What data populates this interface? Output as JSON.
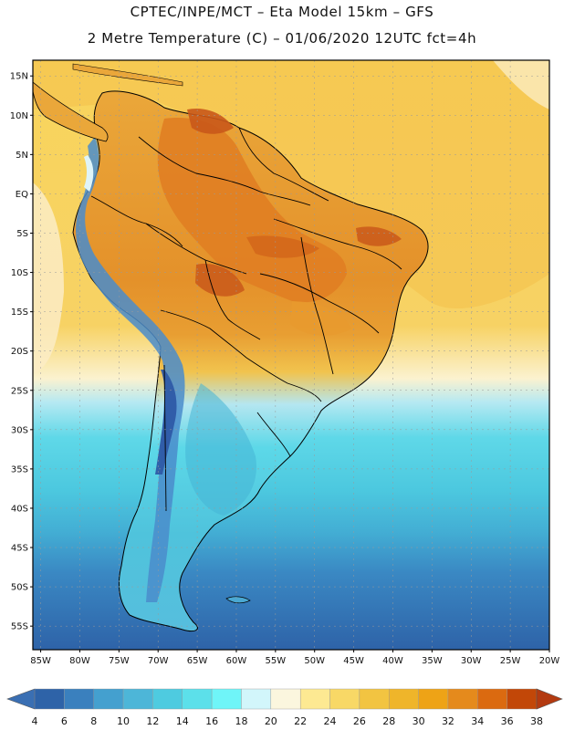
{
  "header": {
    "line1": "CPTEC/INPE/MCT –  Eta Model 15km – GFS",
    "line2": "2 Metre Temperature (C) – 01/06/2020 12UTC fct=4h"
  },
  "map": {
    "region": "South America",
    "lat_range_deg": [
      -58,
      17
    ],
    "lon_range_deg": [
      -86,
      -20
    ],
    "lat_ticks": [
      {
        "value": 15,
        "label": "15N"
      },
      {
        "value": 10,
        "label": "10N"
      },
      {
        "value": 5,
        "label": "5N"
      },
      {
        "value": 0,
        "label": "EQ"
      },
      {
        "value": -5,
        "label": "5S"
      },
      {
        "value": -10,
        "label": "10S"
      },
      {
        "value": -15,
        "label": "15S"
      },
      {
        "value": -20,
        "label": "20S"
      },
      {
        "value": -25,
        "label": "25S"
      },
      {
        "value": -30,
        "label": "30S"
      },
      {
        "value": -35,
        "label": "35S"
      },
      {
        "value": -40,
        "label": "40S"
      },
      {
        "value": -45,
        "label": "45S"
      },
      {
        "value": -50,
        "label": "50S"
      },
      {
        "value": -55,
        "label": "55S"
      }
    ],
    "lon_ticks": [
      {
        "value": -85,
        "label": "85W"
      },
      {
        "value": -80,
        "label": "80W"
      },
      {
        "value": -75,
        "label": "75W"
      },
      {
        "value": -70,
        "label": "70W"
      },
      {
        "value": -65,
        "label": "65W"
      },
      {
        "value": -60,
        "label": "60W"
      },
      {
        "value": -55,
        "label": "55W"
      },
      {
        "value": -50,
        "label": "50W"
      },
      {
        "value": -45,
        "label": "45W"
      },
      {
        "value": -40,
        "label": "40W"
      },
      {
        "value": -35,
        "label": "35W"
      },
      {
        "value": -30,
        "label": "30W"
      },
      {
        "value": -25,
        "label": "25W"
      },
      {
        "value": -20,
        "label": "20W"
      }
    ],
    "temperature_bands": [
      {
        "lat_from": 17,
        "lat_to": 0,
        "temp": 28
      },
      {
        "lat_from": 0,
        "lat_to": -22,
        "temp": 26
      },
      {
        "lat_from": -22,
        "lat_to": -27,
        "temp": 22
      },
      {
        "lat_from": -27,
        "lat_to": -33,
        "temp": 16
      },
      {
        "lat_from": -33,
        "lat_to": -40,
        "temp": 14
      },
      {
        "lat_from": -40,
        "lat_to": -45,
        "temp": 12
      },
      {
        "lat_from": -45,
        "lat_to": -50,
        "temp": 8
      },
      {
        "lat_from": -50,
        "lat_to": -58,
        "temp": 6
      }
    ]
  },
  "colorbar": {
    "label_values": [
      "4",
      "6",
      "8",
      "10",
      "12",
      "14",
      "16",
      "18",
      "20",
      "22",
      "24",
      "26",
      "28",
      "30",
      "32",
      "34",
      "36",
      "38"
    ],
    "under_color": "#3a6fb3",
    "over_color": "#b33a10",
    "colors": [
      "#2e63a8",
      "#3a80be",
      "#44a0cf",
      "#4db6d8",
      "#4ecbe0",
      "#5ce0ea",
      "#6ff5f8",
      "#d2f6fb",
      "#fbf6de",
      "#fde992",
      "#f8d866",
      "#f2c441",
      "#efb52a",
      "#eea316",
      "#e58a1c",
      "#db6a10",
      "#c24708"
    ]
  },
  "style": {
    "land_warm": "#e9a43a",
    "land_hot": "#d9771c",
    "land_hotspot": "#c9581a",
    "andes_snow": "#3a66b0",
    "andes_cold": "#4a8ccb",
    "border_color": "#000000",
    "grid_color": "#9a9a9a"
  }
}
